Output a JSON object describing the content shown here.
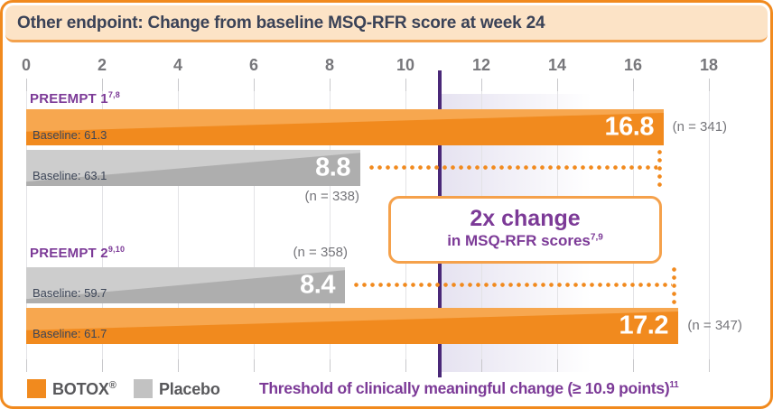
{
  "header": {
    "title": "Other endpoint: Change from baseline MSQ-RFR score at week 24"
  },
  "axis": {
    "tick_labels": [
      "0",
      "2",
      "4",
      "6",
      "8",
      "10",
      "12",
      "14",
      "16",
      "18"
    ]
  },
  "preempt1": {
    "label": "PREEMPT 1",
    "label_sup": "7,8",
    "botox_value": "16.8",
    "botox_baseline": "Baseline: 61.3",
    "botox_n": "(n = 341)",
    "placebo_value": "8.8",
    "placebo_baseline": "Baseline: 63.1",
    "placebo_n": "(n = 338)"
  },
  "preempt2": {
    "label": "PREEMPT 2",
    "label_sup": "9,10",
    "placebo_value": "8.4",
    "placebo_baseline": "Baseline: 59.7",
    "placebo_n": "(n = 358)",
    "botox_value": "17.2",
    "botox_baseline": "Baseline: 61.7",
    "botox_n": "(n = 347)"
  },
  "callout": {
    "line1": "2x change",
    "line2": "in MSQ-RFR scores",
    "line2_sup": "7,9"
  },
  "legend": {
    "botox_label": "BOTOX",
    "botox_sup": "®",
    "placebo_label": "Placebo",
    "threshold_label": "Threshold of clinically meaningful change (≥ 10.9 points)",
    "threshold_sup": "11"
  },
  "colors": {
    "botox_bar": "#F18A1E",
    "botox_bar_light": "#F7A74F",
    "placebo_bar": "#CDCDCD",
    "placebo_bar_dark": "#AEAEAE",
    "threshold_line": "#4A2878",
    "accent_purple": "#7C3A97",
    "header_bg": "#FCE3C6",
    "frame_border": "#F18A1E"
  },
  "chart_data": {
    "type": "bar",
    "orientation": "horizontal",
    "title": "Other endpoint: Change from baseline MSQ-RFR score at week 24",
    "categories": [
      "PREEMPT 1",
      "PREEMPT 2"
    ],
    "series": [
      {
        "name": "BOTOX",
        "values": [
          16.8,
          17.2
        ],
        "n": [
          341,
          347
        ],
        "baselines": [
          61.3,
          61.7
        ],
        "color": "#F18A1E"
      },
      {
        "name": "Placebo",
        "values": [
          8.8,
          8.4
        ],
        "n": [
          338,
          358
        ],
        "baselines": [
          63.1,
          59.7
        ],
        "color": "#CDCDCD"
      }
    ],
    "xlim": [
      0,
      18
    ],
    "x_ticks": [
      0,
      2,
      4,
      6,
      8,
      10,
      12,
      14,
      16,
      18
    ],
    "threshold": 10.9,
    "threshold_label": "Threshold of clinically meaningful change (≥ 10.9 points)",
    "annotation": "2x change in MSQ-RFR scores",
    "grid": true,
    "legend_position": "bottom"
  }
}
